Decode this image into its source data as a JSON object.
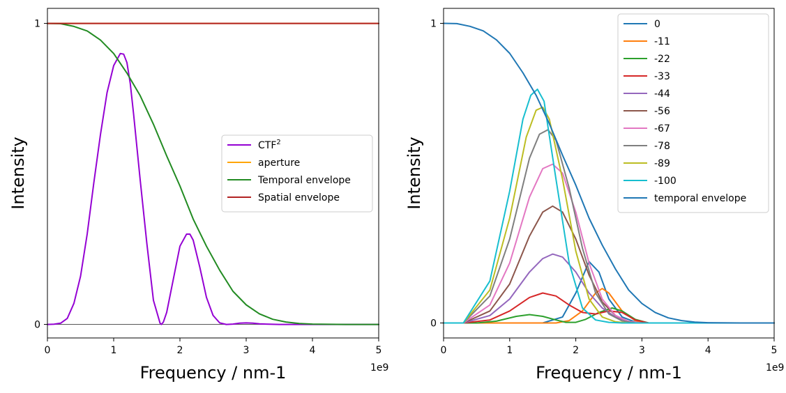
{
  "chart_data": [
    {
      "type": "line",
      "title": "",
      "xlabel": "Frequency / nm-1",
      "ylabel": "Intensity",
      "x_tick_labels": [
        "0",
        "1",
        "2",
        "3",
        "4",
        "5"
      ],
      "y_tick_labels": [
        "0",
        "1"
      ],
      "x_offset_label": "1e9",
      "xlim": [
        0,
        5000000000
      ],
      "ylim": [
        -0.045,
        1.05
      ],
      "grid": false,
      "legend_placement": "center-right",
      "baseline": {
        "y": 0,
        "color": "#555555"
      },
      "legend": [
        {
          "text": "CTF",
          "sup": "2",
          "color": "#9400d3"
        },
        {
          "text": "aperture",
          "sup": "",
          "color": "#ffa500"
        },
        {
          "text": "Temporal envelope",
          "sup": "",
          "color": "#228b22"
        },
        {
          "text": "Spatial envelope",
          "sup": "",
          "color": "#b22222"
        }
      ],
      "series": [
        {
          "name": "CTF²",
          "color": "#9400d3",
          "x": [
            0,
            100000000,
            200000000,
            300000000,
            400000000,
            500000000,
            600000000,
            700000000,
            800000000,
            900000000,
            1000000000,
            1050000000,
            1100000000,
            1150000000,
            1200000000,
            1250000000,
            1300000000,
            1400000000,
            1500000000,
            1600000000,
            1700000000,
            1720000000,
            1750000000,
            1800000000,
            1900000000,
            2000000000,
            2100000000,
            2150000000,
            2200000000,
            2300000000,
            2400000000,
            2500000000,
            2600000000,
            2700000000,
            2800000000,
            2900000000,
            3000000000,
            3100000000,
            3200000000,
            3300000000,
            3500000000,
            4000000000,
            4500000000,
            5000000000
          ],
          "y": [
            0,
            0.0005,
            0.004,
            0.02,
            0.07,
            0.16,
            0.3,
            0.47,
            0.63,
            0.77,
            0.86,
            0.88,
            0.9,
            0.898,
            0.87,
            0.8,
            0.7,
            0.48,
            0.27,
            0.08,
            0.004,
            0,
            0.008,
            0.04,
            0.15,
            0.26,
            0.3,
            0.3,
            0.28,
            0.19,
            0.09,
            0.03,
            0.005,
            0,
            0.001,
            0.004,
            0.005,
            0.004,
            0.002,
            0.001,
            0,
            0,
            0,
            0
          ]
        },
        {
          "name": "aperture",
          "color": "#ffa500",
          "x": [
            0,
            5000000000
          ],
          "y": [
            1,
            1
          ]
        },
        {
          "name": "Temporal envelope",
          "color": "#228b22",
          "x": [
            0,
            200000000,
            400000000,
            600000000,
            800000000,
            1000000000,
            1200000000,
            1400000000,
            1600000000,
            1800000000,
            2000000000,
            2200000000,
            2400000000,
            2600000000,
            2800000000,
            3000000000,
            3200000000,
            3400000000,
            3600000000,
            3800000000,
            4000000000,
            4500000000,
            5000000000
          ],
          "y": [
            1,
            0.999,
            0.99,
            0.975,
            0.945,
            0.9,
            0.835,
            0.76,
            0.665,
            0.56,
            0.46,
            0.35,
            0.26,
            0.18,
            0.11,
            0.065,
            0.035,
            0.017,
            0.008,
            0.003,
            0.001,
            0,
            0
          ]
        },
        {
          "name": "Spatial envelope",
          "color": "#b22222",
          "x": [
            0,
            5000000000
          ],
          "y": [
            1,
            1
          ]
        }
      ]
    },
    {
      "type": "line",
      "title": "",
      "xlabel": "Frequency / nm-1",
      "ylabel": "Intensity",
      "x_tick_labels": [
        "0",
        "1",
        "2",
        "3",
        "4",
        "5"
      ],
      "y_tick_labels": [
        "0",
        "1"
      ],
      "x_offset_label": "1e9",
      "xlim": [
        0,
        5000000000
      ],
      "ylim": [
        -0.05,
        1.05
      ],
      "grid": false,
      "legend_placement": "top-right",
      "legend": [
        {
          "text": "0",
          "color": "#1f77b4"
        },
        {
          "text": "-11",
          "color": "#ff7f0e"
        },
        {
          "text": "-22",
          "color": "#2ca02c"
        },
        {
          "text": "-33",
          "color": "#d62728"
        },
        {
          "text": "-44",
          "color": "#9467bd"
        },
        {
          "text": "-56",
          "color": "#8c564b"
        },
        {
          "text": "-67",
          "color": "#e377c2"
        },
        {
          "text": "-78",
          "color": "#7f7f7f"
        },
        {
          "text": "-89",
          "color": "#bcbd22"
        },
        {
          "text": "-100",
          "color": "#17becf"
        },
        {
          "text": "temporal envelope",
          "color": "#1f77b4"
        }
      ],
      "series": [
        {
          "name": "0",
          "color": "#1f77b4",
          "x": [
            0,
            1500000000,
            1800000000,
            2000000000,
            2200000000,
            2350000000,
            2500000000,
            2700000000,
            2900000000,
            3100000000,
            3500000000,
            5000000000
          ],
          "y": [
            0,
            0,
            0.02,
            0.1,
            0.205,
            0.17,
            0.08,
            0.02,
            0.003,
            0,
            0,
            0
          ]
        },
        {
          "name": "-11",
          "color": "#ff7f0e",
          "x": [
            0,
            1700000000,
            1900000000,
            2100000000,
            2300000000,
            2400000000,
            2500000000,
            2700000000,
            2900000000,
            3100000000,
            5000000000
          ],
          "y": [
            0,
            0,
            0.008,
            0.04,
            0.1,
            0.115,
            0.1,
            0.04,
            0.008,
            0,
            0
          ]
        },
        {
          "name": "-22",
          "color": "#2ca02c",
          "x": [
            0,
            500000000,
            800000000,
            1100000000,
            1300000000,
            1500000000,
            1700000000,
            1850000000,
            2000000000,
            2150000000,
            2350000000,
            2550000000,
            2700000000,
            2900000000,
            3100000000,
            5000000000
          ],
          "y": [
            0,
            0,
            0.006,
            0.022,
            0.028,
            0.022,
            0.01,
            0.002,
            0.002,
            0.012,
            0.035,
            0.05,
            0.04,
            0.012,
            0,
            0
          ]
        },
        {
          "name": "-33",
          "color": "#d62728",
          "x": [
            0,
            300000000,
            700000000,
            1000000000,
            1300000000,
            1500000000,
            1700000000,
            1900000000,
            2100000000,
            2300000000,
            2500000000,
            2700000000,
            2900000000,
            3100000000,
            5000000000
          ],
          "y": [
            0,
            0,
            0.01,
            0.04,
            0.085,
            0.1,
            0.09,
            0.06,
            0.035,
            0.03,
            0.04,
            0.035,
            0.01,
            0,
            0
          ]
        },
        {
          "name": "-44",
          "color": "#9467bd",
          "x": [
            0,
            300000000,
            700000000,
            1000000000,
            1300000000,
            1500000000,
            1650000000,
            1800000000,
            2000000000,
            2200000000,
            2400000000,
            2600000000,
            2800000000,
            3000000000,
            5000000000
          ],
          "y": [
            0,
            0,
            0.025,
            0.08,
            0.17,
            0.215,
            0.23,
            0.22,
            0.17,
            0.1,
            0.05,
            0.02,
            0.005,
            0,
            0
          ]
        },
        {
          "name": "-56",
          "color": "#8c564b",
          "x": [
            0,
            300000000,
            700000000,
            1000000000,
            1300000000,
            1500000000,
            1650000000,
            1800000000,
            2000000000,
            2200000000,
            2400000000,
            2600000000,
            2800000000,
            3000000000,
            5000000000
          ],
          "y": [
            0,
            0,
            0.04,
            0.13,
            0.29,
            0.37,
            0.39,
            0.37,
            0.28,
            0.16,
            0.07,
            0.025,
            0.005,
            0,
            0
          ]
        },
        {
          "name": "-67",
          "color": "#e377c2",
          "x": [
            0,
            300000000,
            700000000,
            1000000000,
            1300000000,
            1500000000,
            1650000000,
            1800000000,
            2000000000,
            2200000000,
            2400000000,
            2600000000,
            2800000000,
            3000000000,
            5000000000
          ],
          "y": [
            0,
            0,
            0.06,
            0.2,
            0.42,
            0.515,
            0.53,
            0.5,
            0.37,
            0.2,
            0.08,
            0.025,
            0.005,
            0,
            0
          ]
        },
        {
          "name": "-78",
          "color": "#7f7f7f",
          "x": [
            0,
            300000000,
            700000000,
            1000000000,
            1300000000,
            1450000000,
            1580000000,
            1700000000,
            1900000000,
            2100000000,
            2300000000,
            2500000000,
            2700000000,
            2900000000,
            5000000000
          ],
          "y": [
            0,
            0,
            0.09,
            0.28,
            0.55,
            0.63,
            0.645,
            0.61,
            0.45,
            0.25,
            0.1,
            0.03,
            0.007,
            0,
            0
          ]
        },
        {
          "name": "-89",
          "color": "#bcbd22",
          "x": [
            0,
            300000000,
            700000000,
            1000000000,
            1250000000,
            1400000000,
            1500000000,
            1600000000,
            1800000000,
            2000000000,
            2200000000,
            2400000000,
            2600000000,
            2800000000,
            5000000000
          ],
          "y": [
            0,
            0,
            0.11,
            0.35,
            0.62,
            0.71,
            0.72,
            0.68,
            0.48,
            0.24,
            0.08,
            0.02,
            0.004,
            0,
            0
          ]
        },
        {
          "name": "-100",
          "color": "#17becf",
          "x": [
            0,
            300000000,
            700000000,
            1000000000,
            1200000000,
            1320000000,
            1420000000,
            1520000000,
            1700000000,
            1900000000,
            2100000000,
            2300000000,
            2500000000,
            2700000000,
            5000000000
          ],
          "y": [
            0,
            0,
            0.14,
            0.44,
            0.68,
            0.76,
            0.78,
            0.74,
            0.48,
            0.2,
            0.05,
            0.01,
            0.002,
            0,
            0
          ]
        },
        {
          "name": "temporal envelope",
          "color": "#1f77b4",
          "x": [
            0,
            200000000,
            400000000,
            600000000,
            800000000,
            1000000000,
            1200000000,
            1400000000,
            1600000000,
            1800000000,
            2000000000,
            2200000000,
            2400000000,
            2600000000,
            2800000000,
            3000000000,
            3200000000,
            3400000000,
            3600000000,
            3800000000,
            4000000000,
            4500000000,
            5000000000
          ],
          "y": [
            1,
            0.999,
            0.99,
            0.975,
            0.945,
            0.9,
            0.835,
            0.76,
            0.665,
            0.56,
            0.46,
            0.35,
            0.26,
            0.18,
            0.11,
            0.065,
            0.035,
            0.017,
            0.008,
            0.003,
            0.001,
            0,
            0
          ]
        }
      ]
    }
  ]
}
